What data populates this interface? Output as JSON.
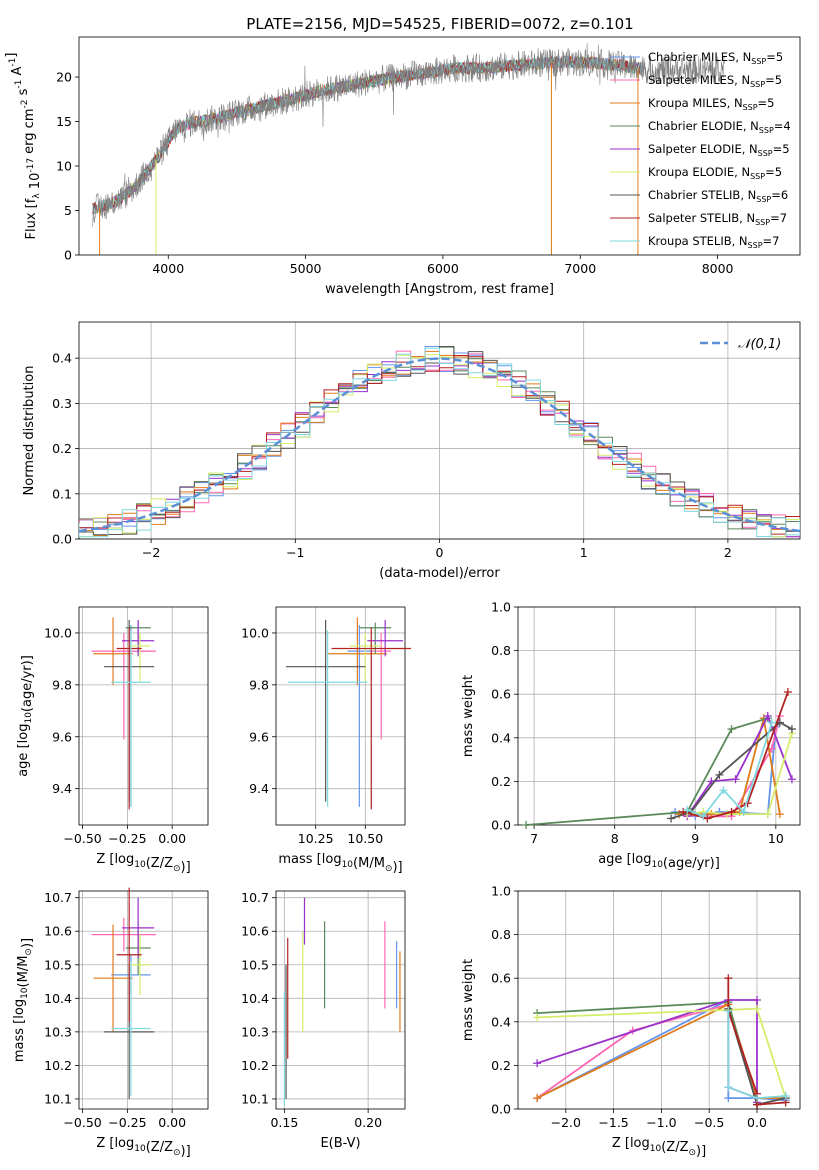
{
  "title": "PLATE=2156, MJD=54525, FIBERID=0072, z=0.101",
  "models": [
    {
      "name": "Chabrier MILES",
      "nssp": "5",
      "color": "#6495ed"
    },
    {
      "name": "Salpeter MILES",
      "nssp": "5",
      "color": "#ff69b4"
    },
    {
      "name": "Kroupa MILES",
      "nssp": "5",
      "color": "#e07b1a"
    },
    {
      "name": "Chabrier ELODIE",
      "nssp": "4",
      "color": "#5a8a5a"
    },
    {
      "name": "Salpeter ELODIE",
      "nssp": "5",
      "color": "#9932cc"
    },
    {
      "name": "Kroupa ELODIE",
      "nssp": "5",
      "color": "#d4ed6b"
    },
    {
      "name": "Chabrier STELIB",
      "nssp": "6",
      "color": "#555555"
    },
    {
      "name": "Salpeter STELIB",
      "nssp": "7",
      "color": "#b22222"
    },
    {
      "name": "Kroupa STELIB",
      "nssp": "7",
      "color": "#80d8e0"
    }
  ],
  "chart_data": [
    {
      "id": "spectrum",
      "type": "line",
      "xlabel": "wavelength [Angstrom, rest frame]",
      "ylabel": "Flux [f_λ 10^-17 erg cm^-2 s^-1 A^-1]",
      "xlim": [
        3350,
        8600
      ],
      "ylim": [
        0,
        24.5
      ],
      "xticks": [
        4000,
        5000,
        6000,
        7000,
        8000
      ],
      "yticks": [
        0,
        5,
        10,
        15,
        20
      ],
      "legend": "upper-right",
      "continuum": {
        "x": [
          3450,
          3550,
          3650,
          3750,
          3850,
          3950,
          4050,
          4150,
          4300,
          4500,
          4700,
          4900,
          5100,
          5300,
          5500,
          5700,
          5900,
          6100,
          6300,
          6500,
          6700,
          6900,
          7100,
          7300,
          7500
        ],
        "y": [
          5.2,
          5.6,
          6.3,
          7.5,
          9.5,
          11.5,
          14.0,
          14.8,
          15.2,
          16.0,
          16.8,
          17.5,
          18.4,
          19.0,
          19.6,
          20.1,
          20.5,
          21.0,
          21.0,
          21.3,
          21.5,
          21.7,
          21.6,
          21.3,
          20.8
        ]
      },
      "observed_extent": [
        3450,
        8050
      ],
      "spikes": [
        {
          "x": 3500,
          "y": 0.0
        },
        {
          "x": 3910,
          "y": 0.0
        },
        {
          "x": 6790,
          "y": 0.0
        },
        {
          "x": 7420,
          "y": 0.0
        }
      ]
    },
    {
      "id": "residuals",
      "type": "histogram",
      "xlabel": "(data-model)/error",
      "ylabel": "Normed distribution",
      "xlim": [
        -2.5,
        2.5
      ],
      "ylim": [
        0,
        0.48
      ],
      "xticks": [
        -2,
        -1,
        0,
        1,
        2
      ],
      "yticks": [
        0.0,
        0.1,
        0.2,
        0.3,
        0.4
      ],
      "reference_label": "𝒩(0,1)",
      "bin_width": 0.1
    },
    {
      "id": "age_vs_Z",
      "type": "errorbar",
      "xlabel": "Z [log10(Z/Z☉)]",
      "ylabel": "age  [log10(age/yr)]",
      "xlim": [
        -0.52,
        0.2
      ],
      "ylim": [
        9.26,
        10.1
      ],
      "xticks": [
        -0.5,
        -0.25,
        0.0
      ],
      "xtick_labels": [
        "−0.50",
        "−0.25",
        "0.00"
      ],
      "yticks": [
        9.4,
        9.6,
        9.8,
        10.0
      ],
      "points": [
        {
          "x": -0.23,
          "xerr": 0.11,
          "y": 9.93,
          "yerr": [
            0.6,
            0.1
          ]
        },
        {
          "x": -0.27,
          "xerr": 0.18,
          "y": 9.93,
          "yerr": [
            0.34,
            0.07
          ]
        },
        {
          "x": -0.33,
          "xerr": 0.11,
          "y": 9.92,
          "yerr": [
            0.12,
            0.14
          ]
        },
        {
          "x": -0.19,
          "xerr": 0.07,
          "y": 10.02,
          "yerr": [
            0.1,
            0.02
          ]
        },
        {
          "x": -0.19,
          "xerr": 0.09,
          "y": 9.97,
          "yerr": [
            0.06,
            0.08
          ]
        },
        {
          "x": -0.18,
          "xerr": 0.06,
          "y": 9.95,
          "yerr": [
            0.14,
            0.05
          ]
        },
        {
          "x": -0.24,
          "xerr": 0.14,
          "y": 9.87,
          "yerr": [
            0.52,
            0.18
          ]
        },
        {
          "x": -0.24,
          "xerr": 0.07,
          "y": 9.94,
          "yerr": [
            0.62,
            0.08
          ]
        },
        {
          "x": -0.23,
          "xerr": 0.11,
          "y": 9.81,
          "yerr": [
            0.48,
            0.2
          ]
        }
      ]
    },
    {
      "id": "age_vs_mass",
      "type": "errorbar",
      "xlabel": "mass [log10(M/M☉)]",
      "xlim": [
        10.05,
        10.7
      ],
      "ylim": [
        9.26,
        10.1
      ],
      "xticks": [
        10.25,
        10.5
      ],
      "xtick_labels": [
        "10.25",
        "10.50"
      ],
      "yticks": [
        9.4,
        9.6,
        9.8,
        10.0
      ],
      "points": [
        {
          "x": 10.47,
          "xerr": 0.06,
          "y": 9.93,
          "yerr": [
            0.6,
            0.1
          ]
        },
        {
          "x": 10.58,
          "xerr": 0.05,
          "y": 9.93,
          "yerr": [
            0.34,
            0.07
          ]
        },
        {
          "x": 10.46,
          "xerr": 0.15,
          "y": 9.92,
          "yerr": [
            0.12,
            0.14
          ]
        },
        {
          "x": 10.55,
          "xerr": 0.08,
          "y": 10.02,
          "yerr": [
            0.1,
            0.02
          ]
        },
        {
          "x": 10.6,
          "xerr": 0.09,
          "y": 9.97,
          "yerr": [
            0.06,
            0.08
          ]
        },
        {
          "x": 10.5,
          "xerr": 0.08,
          "y": 9.95,
          "yerr": [
            0.14,
            0.05
          ]
        },
        {
          "x": 10.3,
          "xerr": 0.2,
          "y": 9.87,
          "yerr": [
            0.52,
            0.18
          ]
        },
        {
          "x": 10.53,
          "xerr": 0.2,
          "y": 9.94,
          "yerr": [
            0.62,
            0.08
          ]
        },
        {
          "x": 10.31,
          "xerr": 0.2,
          "y": 9.81,
          "yerr": [
            0.48,
            0.2
          ]
        }
      ]
    },
    {
      "id": "weight_vs_age",
      "type": "line",
      "xlabel": "age  [log10(age/yr)]",
      "ylabel": "mass weight",
      "xlim": [
        6.8,
        10.3
      ],
      "ylim": [
        0,
        1.0
      ],
      "xticks": [
        7,
        8,
        9,
        10
      ],
      "yticks": [
        0.0,
        0.2,
        0.4,
        0.6,
        0.8,
        1.0
      ],
      "series": [
        {
          "x": [
            8.75,
            9.0,
            9.3,
            9.9,
            10.0
          ],
          "y": [
            0.06,
            0.04,
            0.06,
            0.05,
            0.45
          ]
        },
        {
          "x": [
            8.8,
            9.1,
            9.45,
            9.95,
            10.05
          ],
          "y": [
            0.05,
            0.04,
            0.04,
            0.35,
            0.5
          ]
        },
        {
          "x": [
            8.8,
            9.2,
            9.55,
            9.85,
            10.05
          ],
          "y": [
            0.05,
            0.05,
            0.06,
            0.49,
            0.05
          ]
        },
        {
          "x": [
            6.9,
            8.9,
            9.45,
            9.9
          ],
          "y": [
            0.0,
            0.06,
            0.44,
            0.49
          ]
        },
        {
          "x": [
            8.9,
            9.2,
            9.5,
            9.9,
            10.2
          ],
          "y": [
            0.04,
            0.2,
            0.21,
            0.5,
            0.21
          ]
        },
        {
          "x": [
            8.9,
            9.1,
            9.4,
            9.9,
            10.2
          ],
          "y": [
            0.05,
            0.06,
            0.05,
            0.05,
            0.42
          ]
        },
        {
          "x": [
            8.7,
            8.95,
            9.3,
            10.05,
            10.2
          ],
          "y": [
            0.03,
            0.06,
            0.23,
            0.47,
            0.44
          ]
        },
        {
          "x": [
            8.85,
            9.15,
            9.45,
            9.65,
            10.15
          ],
          "y": [
            0.06,
            0.03,
            0.06,
            0.1,
            0.61
          ]
        },
        {
          "x": [
            8.9,
            9.1,
            9.35,
            9.6,
            9.95
          ],
          "y": [
            0.07,
            0.04,
            0.16,
            0.06,
            0.47
          ]
        }
      ]
    },
    {
      "id": "mass_vs_Z",
      "type": "errorbar",
      "xlabel": "Z [log10(Z/Z☉)]",
      "ylabel": "mass [log10(M/M☉)]",
      "xlim": [
        -0.52,
        0.2
      ],
      "ylim": [
        10.07,
        10.72
      ],
      "xticks": [
        -0.5,
        -0.25,
        0.0
      ],
      "xtick_labels": [
        "−0.50",
        "−0.25",
        "0.00"
      ],
      "yticks": [
        10.1,
        10.2,
        10.3,
        10.4,
        10.5,
        10.6,
        10.7
      ],
      "points": [
        {
          "x": -0.23,
          "xerr": 0.11,
          "y": 10.47,
          "yerr": 0.06
        },
        {
          "x": -0.27,
          "xerr": 0.18,
          "y": 10.59,
          "yerr": 0.05
        },
        {
          "x": -0.33,
          "xerr": 0.11,
          "y": 10.46,
          "yerr": 0.16
        },
        {
          "x": -0.19,
          "xerr": 0.07,
          "y": 10.55,
          "yerr": 0.08
        },
        {
          "x": -0.19,
          "xerr": 0.09,
          "y": 10.61,
          "yerr": 0.09
        },
        {
          "x": -0.18,
          "xerr": 0.06,
          "y": 10.5,
          "yerr": 0.09
        },
        {
          "x": -0.24,
          "xerr": 0.14,
          "y": 10.3,
          "yerr": 0.2
        },
        {
          "x": -0.24,
          "xerr": 0.07,
          "y": 10.53,
          "yerr": 0.2
        },
        {
          "x": -0.23,
          "xerr": 0.11,
          "y": 10.31,
          "yerr": 0.2
        }
      ]
    },
    {
      "id": "mass_vs_ebv",
      "type": "errorbar",
      "xlabel": "E(B-V)",
      "xlim": [
        0.145,
        0.222
      ],
      "ylim": [
        10.07,
        10.72
      ],
      "xticks": [
        0.15,
        0.2
      ],
      "xtick_labels": [
        "0.15",
        "0.20"
      ],
      "yticks": [
        10.1,
        10.2,
        10.3,
        10.4,
        10.5,
        10.6,
        10.7
      ],
      "points": [
        {
          "x": 0.217,
          "y": 10.47,
          "yerr": 0.1
        },
        {
          "x": 0.21,
          "y": 10.5,
          "yerr": 0.13
        },
        {
          "x": 0.219,
          "y": 10.42,
          "yerr": 0.12
        },
        {
          "x": 0.174,
          "y": 10.5,
          "yerr": 0.13
        },
        {
          "x": 0.162,
          "y": 10.63,
          "yerr": 0.07
        },
        {
          "x": 0.161,
          "y": 10.45,
          "yerr": 0.15
        },
        {
          "x": 0.151,
          "y": 10.3,
          "yerr": 0.2
        },
        {
          "x": 0.152,
          "y": 10.4,
          "yerr": 0.18
        },
        {
          "x": 0.15,
          "y": 10.25,
          "yerr": 0.17
        }
      ]
    },
    {
      "id": "weight_vs_Z",
      "type": "line",
      "xlabel": "Z [log10(Z/Z☉)]",
      "ylabel": "mass weight",
      "xlim": [
        -2.5,
        0.45
      ],
      "ylim": [
        0,
        1.0
      ],
      "xticks": [
        -2.0,
        -1.5,
        -1.0,
        -0.5,
        0.0
      ],
      "xtick_labels": [
        "−2.0",
        "−1.5",
        "−1.0",
        "−0.5",
        "0.0"
      ],
      "yticks": [
        0.0,
        0.2,
        0.4,
        0.6,
        0.8,
        1.0
      ],
      "series": [
        {
          "x": [
            -2.3,
            -0.3,
            -0.3,
            0.0,
            0.3
          ],
          "y": [
            0.05,
            0.5,
            0.05,
            0.05,
            0.04
          ]
        },
        {
          "x": [
            -2.3,
            -1.3,
            -0.3,
            -0.3,
            0.0
          ],
          "y": [
            0.05,
            0.36,
            0.48,
            0.1,
            0.05
          ]
        },
        {
          "x": [
            -2.3,
            -0.3,
            0.0,
            0.3
          ],
          "y": [
            0.05,
            0.48,
            0.05,
            0.05
          ]
        },
        {
          "x": [
            -2.3,
            -0.3,
            0.0
          ],
          "y": [
            0.44,
            0.49,
            0.02
          ]
        },
        {
          "x": [
            -2.3,
            -0.3,
            0.0,
            0.0
          ],
          "y": [
            0.21,
            0.5,
            0.5,
            0.03
          ]
        },
        {
          "x": [
            -2.3,
            0.0,
            0.3
          ],
          "y": [
            0.42,
            0.46,
            0.05
          ]
        },
        {
          "x": [
            -0.3,
            0.0,
            0.3
          ],
          "y": [
            0.46,
            0.02,
            0.05
          ]
        },
        {
          "x": [
            -0.3,
            -0.3,
            0.0,
            0.0,
            0.3
          ],
          "y": [
            0.6,
            0.45,
            0.07,
            0.02,
            0.03
          ]
        },
        {
          "x": [
            -0.3,
            -0.3,
            0.0,
            0.3
          ],
          "y": [
            0.45,
            0.1,
            0.05,
            0.06
          ]
        }
      ]
    }
  ]
}
